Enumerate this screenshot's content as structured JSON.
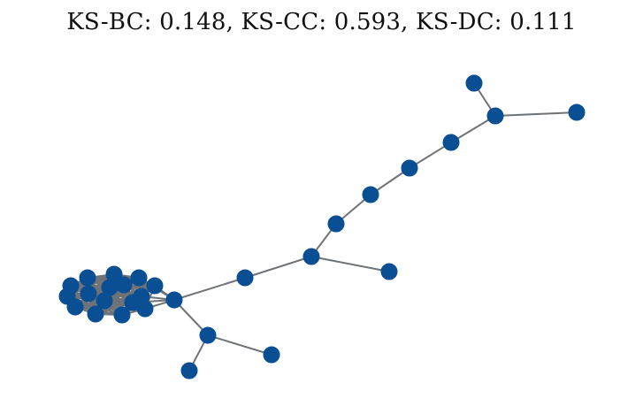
{
  "title": "KS-BC: 0.148, KS-CC: 0.593, KS-DC: 0.111",
  "graph": {
    "node_color": "#0a4f93",
    "edge_color": "#6f7378",
    "node_count": 29,
    "clique_node_count": 16
  }
}
